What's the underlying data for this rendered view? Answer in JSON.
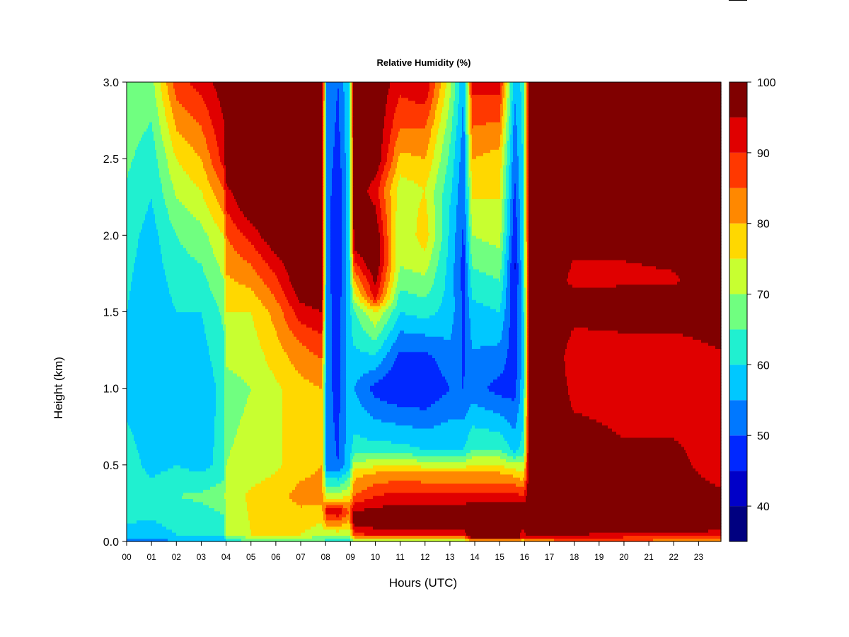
{
  "chart_data": {
    "type": "heatmap",
    "title": "Relative Humidity (%)",
    "xlabel": "Hours (UTC)",
    "ylabel": "Height (km)",
    "xlim": [
      0,
      23.9
    ],
    "ylim": [
      0.0,
      3.0
    ],
    "x_tick_labels": [
      "00",
      "01",
      "02",
      "03",
      "04",
      "05",
      "06",
      "07",
      "08",
      "09",
      "10",
      "11",
      "12",
      "13",
      "14",
      "15",
      "16",
      "17",
      "18",
      "19",
      "20",
      "21",
      "22",
      "23"
    ],
    "y_tick_labels": [
      "0.0",
      "0.5",
      "1.0",
      "1.5",
      "2.0",
      "2.5",
      "3.0"
    ],
    "colorbar": {
      "range": [
        35,
        100
      ],
      "tick_labels": [
        "40",
        "50",
        "60",
        "70",
        "80",
        "90",
        "100"
      ],
      "levels": [
        35,
        40,
        45,
        50,
        55,
        60,
        65,
        70,
        75,
        80,
        85,
        90,
        95,
        100
      ],
      "colors": [
        "#000080",
        "#0000c8",
        "#0028ff",
        "#0078ff",
        "#00c8ff",
        "#20f0d0",
        "#70ff80",
        "#c8ff30",
        "#ffd800",
        "#ff8800",
        "#ff3800",
        "#e00000",
        "#800000"
      ]
    },
    "columns": [
      {
        "hour": 0.0,
        "profile": [
          [
            0.0,
            52
          ],
          [
            0.05,
            58
          ],
          [
            0.3,
            65
          ],
          [
            0.5,
            63
          ],
          [
            1.0,
            58
          ],
          [
            1.5,
            60
          ],
          [
            2.0,
            62
          ],
          [
            2.5,
            66
          ],
          [
            3.0,
            70
          ]
        ]
      },
      {
        "hour": 1.0,
        "profile": [
          [
            0.0,
            52
          ],
          [
            0.05,
            58
          ],
          [
            0.3,
            63
          ],
          [
            0.5,
            58
          ],
          [
            1.0,
            55
          ],
          [
            1.5,
            56
          ],
          [
            2.0,
            58
          ],
          [
            2.5,
            62
          ],
          [
            3.0,
            68
          ]
        ]
      },
      {
        "hour": 2.0,
        "profile": [
          [
            0.0,
            55
          ],
          [
            0.05,
            60
          ],
          [
            0.3,
            65
          ],
          [
            0.5,
            60
          ],
          [
            1.0,
            57
          ],
          [
            1.5,
            60
          ],
          [
            2.0,
            65
          ],
          [
            2.5,
            75
          ],
          [
            3.0,
            88
          ]
        ]
      },
      {
        "hour": 3.0,
        "profile": [
          [
            0.0,
            55
          ],
          [
            0.05,
            60
          ],
          [
            0.3,
            66
          ],
          [
            0.5,
            58
          ],
          [
            1.0,
            56
          ],
          [
            1.5,
            60
          ],
          [
            2.0,
            68
          ],
          [
            2.5,
            80
          ],
          [
            3.0,
            92
          ]
        ]
      },
      {
        "hour": 3.9,
        "profile": [
          [
            0.0,
            56
          ],
          [
            0.05,
            62
          ],
          [
            0.3,
            68
          ],
          [
            0.5,
            62
          ],
          [
            1.0,
            62
          ],
          [
            1.5,
            66
          ],
          [
            2.0,
            75
          ],
          [
            2.5,
            92
          ],
          [
            3.0,
            98
          ]
        ]
      },
      {
        "hour": 4.0,
        "profile": [
          [
            0.0,
            60
          ],
          [
            0.05,
            70
          ],
          [
            0.3,
            72
          ],
          [
            0.5,
            70
          ],
          [
            1.0,
            68
          ],
          [
            1.5,
            75
          ],
          [
            2.0,
            85
          ],
          [
            2.5,
            100
          ],
          [
            3.0,
            100
          ]
        ]
      },
      {
        "hour": 5.0,
        "profile": [
          [
            0.0,
            65
          ],
          [
            0.05,
            75
          ],
          [
            0.3,
            76
          ],
          [
            0.5,
            72
          ],
          [
            1.0,
            70
          ],
          [
            1.5,
            75
          ],
          [
            1.9,
            88
          ],
          [
            2.2,
            100
          ],
          [
            3.0,
            100
          ]
        ]
      },
      {
        "hour": 6.0,
        "profile": [
          [
            0.0,
            65
          ],
          [
            0.05,
            75
          ],
          [
            0.3,
            78
          ],
          [
            0.5,
            74
          ],
          [
            1.0,
            74
          ],
          [
            1.5,
            82
          ],
          [
            1.8,
            92
          ],
          [
            2.0,
            100
          ],
          [
            3.0,
            100
          ]
        ]
      },
      {
        "hour": 7.0,
        "profile": [
          [
            0.0,
            65
          ],
          [
            0.05,
            75
          ],
          [
            0.3,
            82
          ],
          [
            0.5,
            78
          ],
          [
            1.0,
            78
          ],
          [
            1.3,
            85
          ],
          [
            1.5,
            93
          ],
          [
            1.7,
            100
          ],
          [
            3.0,
            100
          ]
        ]
      },
      {
        "hour": 7.85,
        "profile": [
          [
            0.0,
            65
          ],
          [
            0.05,
            72
          ],
          [
            0.3,
            82
          ],
          [
            0.5,
            80
          ],
          [
            1.0,
            80
          ],
          [
            1.3,
            88
          ],
          [
            1.5,
            95
          ],
          [
            1.7,
            100
          ],
          [
            3.0,
            100
          ]
        ]
      },
      {
        "hour": 8.05,
        "profile": [
          [
            0.0,
            62
          ],
          [
            0.05,
            72
          ],
          [
            0.2,
            92
          ],
          [
            0.3,
            72
          ],
          [
            0.5,
            52
          ],
          [
            1.0,
            52
          ],
          [
            1.5,
            52
          ],
          [
            2.0,
            52
          ],
          [
            3.0,
            55
          ]
        ]
      },
      {
        "hour": 8.5,
        "profile": [
          [
            0.0,
            62
          ],
          [
            0.05,
            72
          ],
          [
            0.2,
            95
          ],
          [
            0.3,
            72
          ],
          [
            0.5,
            50
          ],
          [
            1.0,
            48
          ],
          [
            1.5,
            48
          ],
          [
            1.8,
            45
          ],
          [
            2.2,
            45
          ],
          [
            2.6,
            48
          ],
          [
            3.0,
            50
          ]
        ]
      },
      {
        "hour": 8.95,
        "profile": [
          [
            0.0,
            62
          ],
          [
            0.05,
            72
          ],
          [
            0.2,
            85
          ],
          [
            0.3,
            75
          ],
          [
            0.5,
            58
          ],
          [
            1.0,
            58
          ],
          [
            1.5,
            58
          ],
          [
            2.0,
            58
          ],
          [
            3.0,
            60
          ]
        ]
      },
      {
        "hour": 9.15,
        "profile": [
          [
            0.0,
            68
          ],
          [
            0.05,
            88
          ],
          [
            0.15,
            100
          ],
          [
            0.3,
            85
          ],
          [
            0.45,
            78
          ],
          [
            0.6,
            62
          ],
          [
            1.0,
            55
          ],
          [
            1.5,
            64
          ],
          [
            1.7,
            80
          ],
          [
            1.9,
            95
          ],
          [
            2.1,
            100
          ],
          [
            3.0,
            100
          ]
        ]
      },
      {
        "hour": 10.0,
        "profile": [
          [
            0.0,
            68
          ],
          [
            0.05,
            92
          ],
          [
            0.15,
            100
          ],
          [
            0.3,
            90
          ],
          [
            0.45,
            80
          ],
          [
            0.6,
            62
          ],
          [
            1.0,
            48
          ],
          [
            1.5,
            75
          ],
          [
            1.6,
            92
          ],
          [
            1.8,
            100
          ],
          [
            2.0,
            100
          ],
          [
            2.3,
            92
          ],
          [
            2.5,
            100
          ],
          [
            3.0,
            100
          ]
        ]
      },
      {
        "hour": 11.0,
        "profile": [
          [
            0.0,
            68
          ],
          [
            0.05,
            92
          ],
          [
            0.15,
            100
          ],
          [
            0.3,
            92
          ],
          [
            0.45,
            82
          ],
          [
            0.6,
            62
          ],
          [
            1.0,
            45
          ],
          [
            1.2,
            48
          ],
          [
            1.5,
            60
          ],
          [
            1.8,
            70
          ],
          [
            2.0,
            70
          ],
          [
            2.3,
            72
          ],
          [
            2.7,
            85
          ],
          [
            3.0,
            92
          ]
        ]
      },
      {
        "hour": 12.0,
        "profile": [
          [
            0.0,
            68
          ],
          [
            0.05,
            92
          ],
          [
            0.15,
            100
          ],
          [
            0.3,
            92
          ],
          [
            0.45,
            80
          ],
          [
            0.6,
            60
          ],
          [
            1.0,
            45
          ],
          [
            1.2,
            48
          ],
          [
            1.5,
            62
          ],
          [
            1.8,
            72
          ],
          [
            2.0,
            78
          ],
          [
            2.3,
            75
          ],
          [
            2.7,
            85
          ],
          [
            3.0,
            95
          ]
        ]
      },
      {
        "hour": 13.0,
        "profile": [
          [
            0.0,
            68
          ],
          [
            0.05,
            92
          ],
          [
            0.15,
            100
          ],
          [
            0.3,
            92
          ],
          [
            0.45,
            80
          ],
          [
            0.6,
            60
          ],
          [
            1.0,
            50
          ],
          [
            1.5,
            58
          ],
          [
            1.8,
            58
          ],
          [
            2.2,
            60
          ],
          [
            2.6,
            65
          ],
          [
            3.0,
            72
          ]
        ]
      },
      {
        "hour": 13.55,
        "profile": [
          [
            0.0,
            68
          ],
          [
            0.05,
            92
          ],
          [
            0.15,
            100
          ],
          [
            0.3,
            92
          ],
          [
            0.45,
            80
          ],
          [
            0.6,
            60
          ],
          [
            1.0,
            50
          ],
          [
            1.8,
            48
          ],
          [
            2.5,
            52
          ],
          [
            3.0,
            55
          ]
        ]
      },
      {
        "hour": 13.9,
        "profile": [
          [
            0.0,
            75
          ],
          [
            0.03,
            100
          ],
          [
            0.2,
            100
          ],
          [
            0.3,
            92
          ],
          [
            0.45,
            80
          ],
          [
            0.6,
            65
          ],
          [
            1.0,
            52
          ],
          [
            1.5,
            58
          ],
          [
            2.0,
            70
          ],
          [
            2.5,
            80
          ],
          [
            3.0,
            92
          ]
        ]
      },
      {
        "hour": 15.0,
        "profile": [
          [
            0.0,
            75
          ],
          [
            0.03,
            100
          ],
          [
            0.2,
            100
          ],
          [
            0.3,
            92
          ],
          [
            0.45,
            80
          ],
          [
            0.6,
            65
          ],
          [
            1.0,
            48
          ],
          [
            1.5,
            60
          ],
          [
            2.0,
            72
          ],
          [
            2.5,
            78
          ],
          [
            3.0,
            92
          ]
        ]
      },
      {
        "hour": 15.6,
        "profile": [
          [
            0.0,
            75
          ],
          [
            0.03,
            100
          ],
          [
            0.2,
            100
          ],
          [
            0.3,
            92
          ],
          [
            0.45,
            78
          ],
          [
            0.6,
            58
          ],
          [
            1.0,
            48
          ],
          [
            1.8,
            44
          ],
          [
            2.2,
            48
          ],
          [
            2.6,
            52
          ],
          [
            3.0,
            56
          ]
        ]
      },
      {
        "hour": 15.95,
        "profile": [
          [
            0.0,
            72
          ],
          [
            0.03,
            92
          ],
          [
            0.2,
            100
          ],
          [
            0.4,
            80
          ],
          [
            0.6,
            62
          ],
          [
            1.0,
            58
          ],
          [
            1.5,
            58
          ],
          [
            2.0,
            60
          ],
          [
            3.0,
            62
          ]
        ]
      },
      {
        "hour": 16.2,
        "profile": [
          [
            0.0,
            80
          ],
          [
            0.05,
            100
          ],
          [
            3.0,
            100
          ]
        ]
      },
      {
        "hour": 17.2,
        "profile": [
          [
            0.0,
            82
          ],
          [
            0.06,
            100
          ],
          [
            3.0,
            100
          ]
        ]
      },
      {
        "hour": 18.0,
        "profile": [
          [
            0.0,
            84
          ],
          [
            0.07,
            100
          ],
          [
            0.6,
            100
          ],
          [
            0.9,
            94
          ],
          [
            1.2,
            90
          ],
          [
            1.4,
            95
          ],
          [
            1.6,
            100
          ],
          [
            1.7,
            92
          ],
          [
            1.9,
            96
          ],
          [
            2.1,
            100
          ],
          [
            3.0,
            100
          ]
        ]
      },
      {
        "hour": 20.0,
        "profile": [
          [
            0.0,
            84
          ],
          [
            0.08,
            100
          ],
          [
            0.6,
            96
          ],
          [
            0.9,
            92
          ],
          [
            1.2,
            90
          ],
          [
            1.4,
            96
          ],
          [
            1.6,
            100
          ],
          [
            1.7,
            93
          ],
          [
            1.9,
            96
          ],
          [
            2.1,
            100
          ],
          [
            3.0,
            100
          ]
        ]
      },
      {
        "hour": 22.0,
        "profile": [
          [
            0.0,
            82
          ],
          [
            0.08,
            100
          ],
          [
            0.6,
            96
          ],
          [
            0.9,
            92
          ],
          [
            1.2,
            90
          ],
          [
            1.4,
            96
          ],
          [
            1.6,
            100
          ],
          [
            1.7,
            94
          ],
          [
            1.9,
            97
          ],
          [
            2.1,
            100
          ],
          [
            3.0,
            100
          ]
        ]
      },
      {
        "hour": 23.9,
        "profile": [
          [
            0.0,
            80
          ],
          [
            0.06,
            92
          ],
          [
            0.1,
            100
          ],
          [
            0.5,
            92
          ],
          [
            0.9,
            91
          ],
          [
            1.2,
            94
          ],
          [
            1.5,
            100
          ],
          [
            3.0,
            100
          ]
        ]
      }
    ]
  }
}
